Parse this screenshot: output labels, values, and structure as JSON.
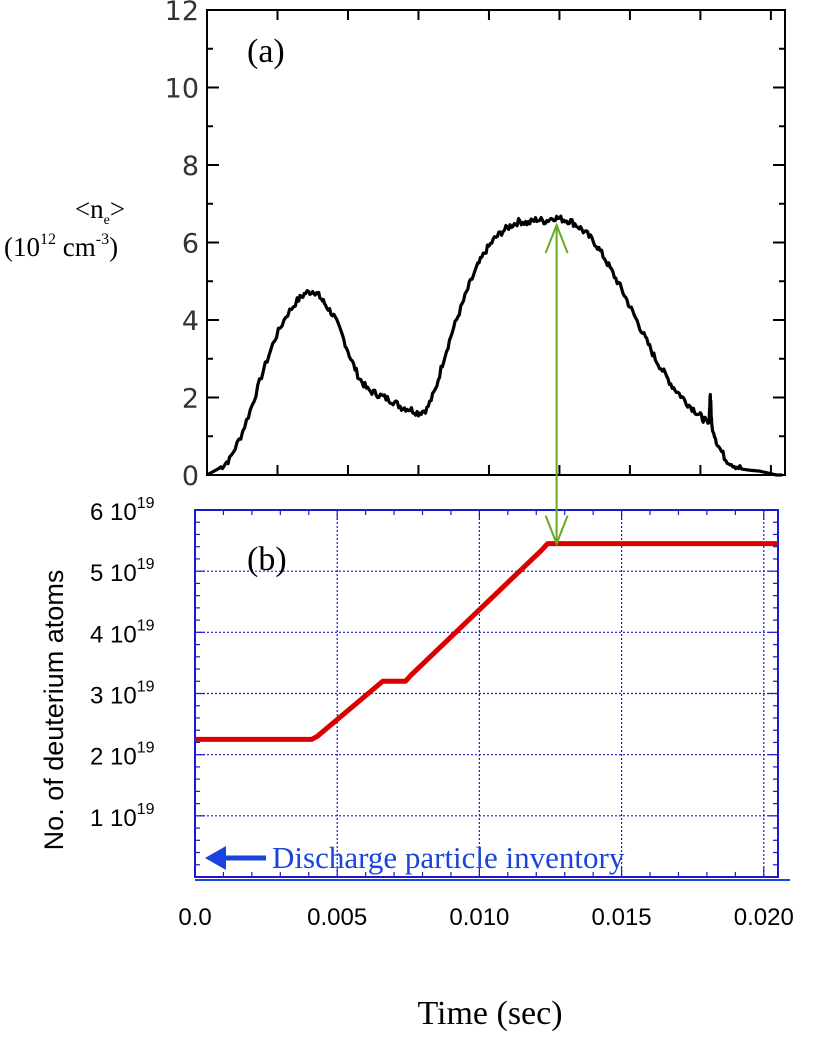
{
  "chart_data": [
    {
      "id": "a",
      "type": "line",
      "panel_label": "(a)",
      "ylabel_line1": "<n",
      "ylabel_sub": "e",
      "ylabel_line1_end": ">",
      "ylabel_line2_a": "(10",
      "ylabel_line2_sup1": "12",
      "ylabel_line2_b": " cm",
      "ylabel_line2_sup2": "-3",
      "ylabel_line2_c": ")",
      "ylim": [
        0,
        12
      ],
      "xlim": [
        0.0,
        0.0205
      ],
      "yticks": [
        "0",
        "2",
        "4",
        "6",
        "8",
        "10",
        "12"
      ],
      "ytick_values": [
        0,
        2,
        4,
        6,
        8,
        10,
        12
      ],
      "grid": false,
      "color": "#000000",
      "series": [
        {
          "x": [
            0.0,
            0.0005,
            0.0008,
            0.0012,
            0.0016,
            0.002,
            0.0024,
            0.0028,
            0.0032,
            0.0035,
            0.0038,
            0.004,
            0.0042,
            0.0045,
            0.0048,
            0.0051,
            0.0054,
            0.0057,
            0.006,
            0.0063,
            0.0066,
            0.0069,
            0.0072,
            0.0075,
            0.0078,
            0.0081,
            0.0084,
            0.0087,
            0.009,
            0.0093,
            0.0096,
            0.0099,
            0.0102,
            0.0105,
            0.0108,
            0.0111,
            0.0114,
            0.0117,
            0.012,
            0.0123,
            0.0126,
            0.0129,
            0.0132,
            0.0135,
            0.0138,
            0.0141,
            0.0144,
            0.0147,
            0.015,
            0.0153,
            0.0156,
            0.0159,
            0.0162,
            0.0165,
            0.0168,
            0.0171,
            0.0174,
            0.0176,
            0.0178,
            0.01785,
            0.0179,
            0.0181,
            0.0184,
            0.0187,
            0.019,
            0.0193,
            0.0196,
            0.0199,
            0.0202,
            0.0204
          ],
          "y": [
            0.0,
            0.2,
            0.4,
            1.0,
            1.8,
            2.7,
            3.5,
            4.1,
            4.5,
            4.7,
            4.75,
            4.6,
            4.4,
            4.1,
            3.6,
            3.0,
            2.5,
            2.2,
            2.1,
            2.0,
            1.9,
            1.75,
            1.7,
            1.6,
            1.7,
            2.2,
            3.0,
            3.7,
            4.3,
            4.9,
            5.4,
            5.8,
            6.1,
            6.3,
            6.45,
            6.55,
            6.5,
            6.6,
            6.55,
            6.65,
            6.6,
            6.55,
            6.4,
            6.2,
            5.95,
            5.6,
            5.2,
            4.8,
            4.35,
            3.9,
            3.45,
            3.0,
            2.65,
            2.3,
            2.05,
            1.8,
            1.6,
            1.45,
            1.3,
            2.1,
            1.3,
            0.8,
            0.4,
            0.25,
            0.15,
            0.12,
            0.1,
            0.05,
            0.0,
            0.0
          ]
        }
      ]
    },
    {
      "id": "b",
      "type": "line",
      "panel_label": "(b)",
      "ylabel": "No. of deuterium atoms",
      "xlabel": "Time (sec)",
      "ylim": [
        0,
        6e+19
      ],
      "xlim": [
        0.0,
        0.0205
      ],
      "yticks": [
        {
          "value": 1e+19,
          "mantissa": "1 10",
          "exp": "19"
        },
        {
          "value": 2e+19,
          "mantissa": "2 10",
          "exp": "19"
        },
        {
          "value": 3e+19,
          "mantissa": "3 10",
          "exp": "19"
        },
        {
          "value": 4e+19,
          "mantissa": "4 10",
          "exp": "19"
        },
        {
          "value": 5e+19,
          "mantissa": "5 10",
          "exp": "19"
        },
        {
          "value": 6e+19,
          "mantissa": "6 10",
          "exp": "19"
        }
      ],
      "xticks": [
        "0.0",
        "0.005",
        "0.010",
        "0.015",
        "0.020"
      ],
      "xtick_values": [
        0.0,
        0.005,
        0.01,
        0.015,
        0.02
      ],
      "grid": true,
      "grid_color": "#1a1acc",
      "line_color": "#dd0000",
      "series": [
        {
          "x": [
            0.0,
            0.0041,
            0.0043,
            0.0066,
            0.0074,
            0.0076,
            0.0122,
            0.0124,
            0.0205
          ],
          "y": [
            2.25e+19,
            2.25e+19,
            2.3e+19,
            3.2e+19,
            3.2e+19,
            3.3e+19,
            5.35e+19,
            5.45e+19,
            5.45e+19
          ]
        }
      ],
      "annotation": {
        "text": "Discharge particle inventory",
        "color": "#1a44dd"
      }
    }
  ],
  "connector": {
    "x": 0.0124,
    "color": "#66aa22"
  }
}
